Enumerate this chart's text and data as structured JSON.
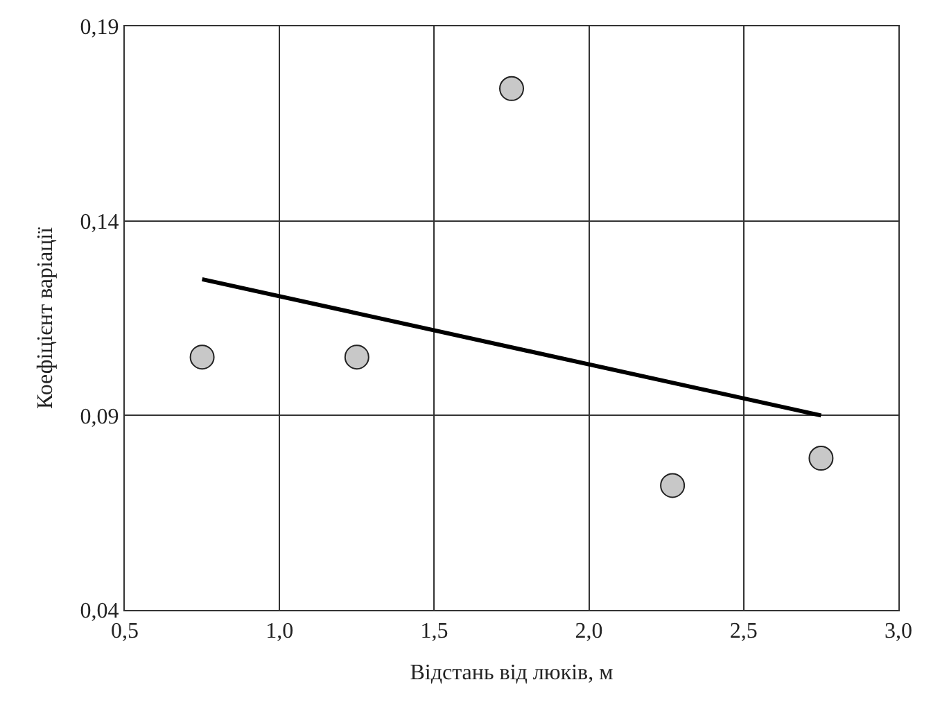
{
  "chart_data": {
    "type": "scatter",
    "xlabel": "Відстань від люків, м",
    "ylabel": "Коефіцієнт варіації",
    "series": [
      {
        "color": "#c8c8c8",
        "marker": "circle",
        "x": [
          0.75,
          1.25,
          1.75,
          2.27,
          2.75
        ],
        "values": [
          0.105,
          0.105,
          0.174,
          0.072,
          0.079
        ]
      },
      {
        "type": "line",
        "color": "#000000",
        "marker": "none",
        "x": [
          0.75,
          2.75
        ],
        "values": [
          0.125,
          0.09
        ]
      }
    ],
    "xlim": [
      0.5,
      3.0
    ],
    "xticks": [
      {
        "value": 0.5,
        "label": "0,5"
      },
      {
        "value": 1.0,
        "label": "1,0"
      },
      {
        "value": 1.5,
        "label": "1,5"
      },
      {
        "value": 2.0,
        "label": "2,0"
      },
      {
        "value": 2.5,
        "label": "2,5"
      },
      {
        "value": 3.0,
        "label": "3,0"
      }
    ],
    "ylim": [
      0.04,
      0.19
    ],
    "yticks": [
      {
        "value": 0.04,
        "label": "0,04"
      },
      {
        "value": 0.09,
        "label": "0,09"
      },
      {
        "value": 0.14,
        "label": "0,14"
      },
      {
        "value": 0.19,
        "label": "0,19"
      }
    ],
    "grid": true,
    "legend": false
  }
}
